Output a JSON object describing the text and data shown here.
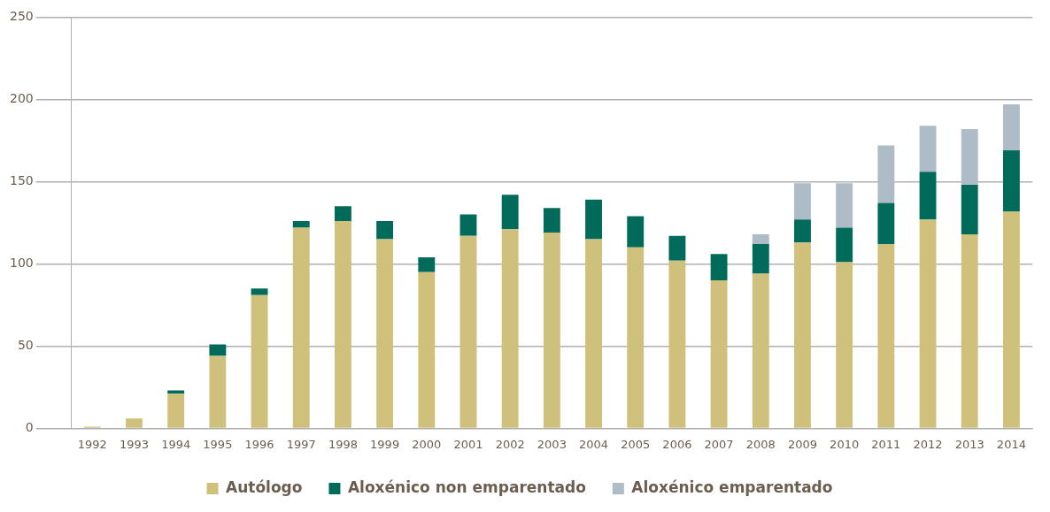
{
  "chart_data": {
    "type": "bar",
    "stacked": true,
    "categories": [
      "1992",
      "1993",
      "1994",
      "1995",
      "1996",
      "1997",
      "1998",
      "1999",
      "2000",
      "2001",
      "2002",
      "2003",
      "2004",
      "2005",
      "2006",
      "2007",
      "2008",
      "2009",
      "2010",
      "2011",
      "2012",
      "2013",
      "2014"
    ],
    "series": [
      {
        "name": "Autólogo",
        "color": "#cfc17c",
        "values": [
          1,
          6,
          21,
          44,
          81,
          122,
          126,
          115,
          95,
          117,
          121,
          119,
          115,
          110,
          102,
          90,
          94,
          113,
          101,
          112,
          127,
          118,
          132
        ]
      },
      {
        "name": "Aloxénico non emparentado",
        "color": "#006b5a",
        "values": [
          0,
          0,
          2,
          7,
          4,
          4,
          9,
          11,
          9,
          13,
          21,
          15,
          24,
          19,
          15,
          16,
          18,
          14,
          21,
          25,
          29,
          30,
          37
        ]
      },
      {
        "name": "Aloxénico emparentado",
        "color": "#adbcc7",
        "values": [
          0,
          0,
          0,
          0,
          0,
          0,
          0,
          0,
          0,
          0,
          0,
          0,
          0,
          0,
          0,
          0,
          6,
          22,
          27,
          35,
          28,
          34,
          28
        ]
      }
    ],
    "ylim": [
      0,
      250
    ],
    "yticks": [
      0,
      50,
      100,
      150,
      200,
      250
    ],
    "grid": "y",
    "legend": "bottom"
  }
}
